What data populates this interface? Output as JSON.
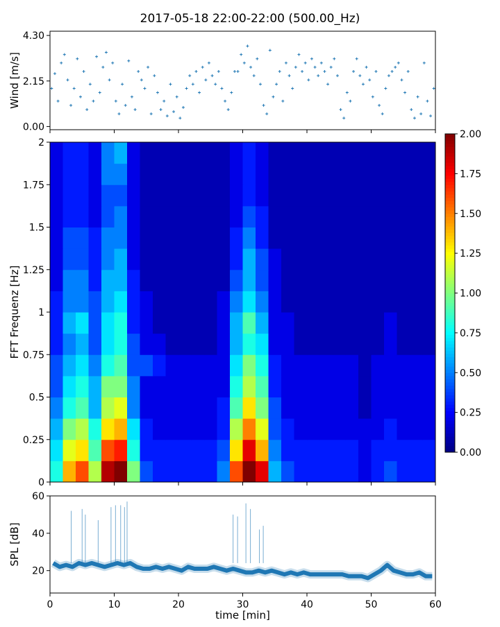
{
  "title": "2017-05-18 22:00-22:00 (500.00_Hz)",
  "chart_data": [
    {
      "type": "scatter",
      "ylabel": "Wind [m/s]",
      "ylim": [
        -0.15,
        4.5
      ],
      "xlim": [
        0,
        60
      ],
      "yticks": [
        "0.00",
        "2.15",
        "4.30"
      ],
      "ytick_values": [
        0,
        2.15,
        4.3
      ],
      "marker": "+",
      "color": "#1f77b4",
      "x_step_min": 0.5,
      "values": [
        1.8,
        2.5,
        1.2,
        3.0,
        3.4,
        2.2,
        1.0,
        1.8,
        3.2,
        1.4,
        2.6,
        0.8,
        2.0,
        1.2,
        3.3,
        1.6,
        2.8,
        3.5,
        2.2,
        3.0,
        1.2,
        0.6,
        2.0,
        1.0,
        3.1,
        1.4,
        0.8,
        2.6,
        2.2,
        1.8,
        2.8,
        0.6,
        2.4,
        1.6,
        0.8,
        1.2,
        0.5,
        2.0,
        0.7,
        1.4,
        0.4,
        0.9,
        1.8,
        2.4,
        2.0,
        2.6,
        1.6,
        2.8,
        2.2,
        3.0,
        2.4,
        2.0,
        2.6,
        1.8,
        1.2,
        0.8,
        1.6,
        2.6,
        2.6,
        3.4,
        3.0,
        3.8,
        2.8,
        2.4,
        3.2,
        2.0,
        1.0,
        0.6,
        3.6,
        1.4,
        2.0,
        2.6,
        1.2,
        3.0,
        2.4,
        1.8,
        2.8,
        3.4,
        2.6,
        3.0,
        2.2,
        3.2,
        2.8,
        2.4,
        3.0,
        2.6,
        2.0,
        2.8,
        3.2,
        2.4,
        0.8,
        0.4,
        1.6,
        1.2,
        2.6,
        3.2,
        2.4,
        2.0,
        2.8,
        2.2,
        1.4,
        2.6,
        1.0,
        0.6,
        1.8,
        2.4,
        2.6,
        2.8,
        3.0,
        2.2,
        1.6,
        2.6,
        0.8,
        0.4,
        1.4,
        0.6,
        3.0,
        1.2,
        0.5,
        1.8
      ]
    },
    {
      "type": "heatmap",
      "ylabel": "FFT Frequenz [Hz]",
      "xlim": [
        0,
        60
      ],
      "ylim": [
        0,
        2
      ],
      "yticks": [
        "0",
        "0.25",
        "0.5",
        "0.75",
        "1",
        "1.25",
        "1.5",
        "1.75",
        "2"
      ],
      "ytick_values": [
        0,
        0.25,
        0.5,
        0.75,
        1,
        1.25,
        1.5,
        1.75,
        2
      ],
      "time_bin_min": 2,
      "freq_bin_hz": 0.125,
      "colormap": "jet",
      "colorbar": {
        "range": [
          0,
          2
        ],
        "ticks": [
          "0.00",
          "0.25",
          "0.50",
          "0.75",
          "1.00",
          "1.25",
          "1.50",
          "1.75",
          "2.00"
        ],
        "tick_values": [
          0,
          0.25,
          0.5,
          0.75,
          1,
          1.25,
          1.5,
          1.75,
          2
        ]
      },
      "values": [
        [
          0.8,
          1.4,
          1.6,
          1.1,
          1.9,
          2.0,
          1.0,
          0.4,
          0.3,
          0.3,
          0.3,
          0.3,
          0.3,
          0.5,
          1.6,
          2.0,
          1.8,
          0.6,
          0.4,
          0.3,
          0.3,
          0.3,
          0.3,
          0.3,
          0.2,
          0.3,
          0.4,
          0.3,
          0.3,
          0.3
        ],
        [
          0.7,
          1.2,
          1.3,
          0.9,
          1.6,
          1.7,
          0.8,
          0.3,
          0.3,
          0.3,
          0.3,
          0.3,
          0.3,
          0.4,
          1.3,
          1.8,
          1.4,
          0.5,
          0.3,
          0.3,
          0.3,
          0.3,
          0.3,
          0.3,
          0.2,
          0.3,
          0.3,
          0.3,
          0.3,
          0.3
        ],
        [
          0.6,
          1.0,
          1.1,
          0.8,
          1.3,
          1.4,
          0.7,
          0.3,
          0.2,
          0.2,
          0.2,
          0.2,
          0.2,
          0.3,
          1.1,
          1.5,
          1.2,
          0.4,
          0.3,
          0.2,
          0.2,
          0.2,
          0.2,
          0.2,
          0.2,
          0.2,
          0.3,
          0.2,
          0.2,
          0.2
        ],
        [
          0.5,
          0.8,
          0.9,
          0.6,
          1.1,
          1.2,
          0.5,
          0.2,
          0.2,
          0.2,
          0.2,
          0.2,
          0.2,
          0.3,
          0.9,
          1.3,
          1.0,
          0.4,
          0.2,
          0.2,
          0.2,
          0.2,
          0.2,
          0.2,
          0.1,
          0.2,
          0.2,
          0.2,
          0.2,
          0.2
        ],
        [
          0.4,
          0.7,
          0.8,
          0.6,
          1.0,
          1.0,
          0.5,
          0.2,
          0.2,
          0.2,
          0.2,
          0.2,
          0.2,
          0.2,
          0.8,
          1.1,
          0.9,
          0.3,
          0.2,
          0.2,
          0.2,
          0.2,
          0.2,
          0.2,
          0.1,
          0.2,
          0.2,
          0.2,
          0.2,
          0.2
        ],
        [
          0.4,
          0.6,
          0.7,
          0.5,
          0.8,
          0.9,
          0.4,
          0.4,
          0.3,
          0.2,
          0.2,
          0.2,
          0.2,
          0.2,
          0.7,
          1.0,
          0.8,
          0.3,
          0.2,
          0.2,
          0.2,
          0.2,
          0.2,
          0.2,
          0.1,
          0.2,
          0.2,
          0.2,
          0.2,
          0.2
        ],
        [
          0.3,
          0.5,
          0.6,
          0.4,
          0.7,
          0.8,
          0.4,
          0.2,
          0.2,
          0.1,
          0.1,
          0.1,
          0.1,
          0.2,
          0.6,
          0.8,
          0.7,
          0.2,
          0.2,
          0.1,
          0.1,
          0.1,
          0.1,
          0.1,
          0.1,
          0.1,
          0.2,
          0.1,
          0.1,
          0.1
        ],
        [
          0.3,
          0.6,
          0.7,
          0.4,
          0.7,
          0.8,
          0.3,
          0.2,
          0.1,
          0.1,
          0.1,
          0.1,
          0.1,
          0.2,
          0.6,
          0.9,
          0.6,
          0.2,
          0.2,
          0.1,
          0.1,
          0.1,
          0.1,
          0.1,
          0.1,
          0.1,
          0.2,
          0.1,
          0.1,
          0.1
        ],
        [
          0.3,
          0.5,
          0.5,
          0.4,
          0.6,
          0.7,
          0.3,
          0.2,
          0.1,
          0.1,
          0.1,
          0.1,
          0.1,
          0.2,
          0.5,
          0.7,
          0.5,
          0.2,
          0.1,
          0.1,
          0.1,
          0.1,
          0.1,
          0.1,
          0.1,
          0.1,
          0.1,
          0.1,
          0.1,
          0.1
        ],
        [
          0.2,
          0.5,
          0.5,
          0.3,
          0.6,
          0.6,
          0.3,
          0.1,
          0.1,
          0.1,
          0.1,
          0.1,
          0.1,
          0.1,
          0.4,
          0.6,
          0.4,
          0.2,
          0.1,
          0.1,
          0.1,
          0.1,
          0.1,
          0.1,
          0.1,
          0.1,
          0.1,
          0.1,
          0.1,
          0.1
        ],
        [
          0.2,
          0.4,
          0.4,
          0.3,
          0.5,
          0.6,
          0.2,
          0.1,
          0.1,
          0.1,
          0.1,
          0.1,
          0.1,
          0.1,
          0.3,
          0.6,
          0.4,
          0.2,
          0.1,
          0.1,
          0.1,
          0.1,
          0.1,
          0.1,
          0.1,
          0.1,
          0.1,
          0.1,
          0.1,
          0.1
        ],
        [
          0.2,
          0.4,
          0.4,
          0.3,
          0.5,
          0.5,
          0.2,
          0.1,
          0.1,
          0.1,
          0.1,
          0.1,
          0.1,
          0.1,
          0.3,
          0.5,
          0.3,
          0.1,
          0.1,
          0.1,
          0.1,
          0.1,
          0.1,
          0.1,
          0.1,
          0.1,
          0.1,
          0.1,
          0.1,
          0.1
        ],
        [
          0.2,
          0.3,
          0.3,
          0.2,
          0.4,
          0.5,
          0.2,
          0.1,
          0.1,
          0.1,
          0.1,
          0.1,
          0.1,
          0.1,
          0.2,
          0.4,
          0.3,
          0.1,
          0.1,
          0.1,
          0.1,
          0.1,
          0.1,
          0.1,
          0.1,
          0.1,
          0.1,
          0.1,
          0.1,
          0.1
        ],
        [
          0.2,
          0.3,
          0.3,
          0.2,
          0.4,
          0.4,
          0.2,
          0.1,
          0.1,
          0.1,
          0.1,
          0.1,
          0.1,
          0.1,
          0.2,
          0.3,
          0.2,
          0.1,
          0.1,
          0.1,
          0.1,
          0.1,
          0.1,
          0.1,
          0.1,
          0.1,
          0.1,
          0.1,
          0.1,
          0.1
        ],
        [
          0.2,
          0.3,
          0.3,
          0.2,
          0.5,
          0.5,
          0.2,
          0.1,
          0.1,
          0.1,
          0.1,
          0.1,
          0.1,
          0.1,
          0.2,
          0.3,
          0.2,
          0.1,
          0.1,
          0.1,
          0.1,
          0.1,
          0.1,
          0.1,
          0.1,
          0.1,
          0.1,
          0.1,
          0.1,
          0.1
        ],
        [
          0.2,
          0.3,
          0.3,
          0.2,
          0.5,
          0.6,
          0.2,
          0.1,
          0.1,
          0.1,
          0.1,
          0.1,
          0.1,
          0.1,
          0.2,
          0.3,
          0.2,
          0.1,
          0.1,
          0.1,
          0.1,
          0.1,
          0.1,
          0.1,
          0.1,
          0.1,
          0.1,
          0.1,
          0.1,
          0.1
        ]
      ]
    },
    {
      "type": "line",
      "xlabel": "time [min]",
      "ylabel": "SPL [dB]",
      "xlim": [
        0,
        60
      ],
      "ylim": [
        8,
        60
      ],
      "xticks": [
        "0",
        "10",
        "20",
        "30",
        "40",
        "50",
        "60"
      ],
      "xtick_values": [
        0,
        10,
        20,
        30,
        40,
        50,
        60
      ],
      "yticks": [
        "20",
        "40",
        "60"
      ],
      "ytick_values": [
        20,
        40,
        60
      ],
      "color": "#1f77b4",
      "x": [
        0.5,
        1.5,
        2.5,
        3.5,
        4.5,
        5.5,
        6.5,
        7.5,
        8.5,
        9.5,
        10.5,
        11.5,
        12.5,
        13.5,
        14.5,
        15.5,
        16.5,
        17.5,
        18.5,
        19.5,
        20.5,
        21.5,
        22.5,
        23.5,
        24.5,
        25.5,
        26.5,
        27.5,
        28.5,
        29.5,
        30.5,
        31.5,
        32.5,
        33.5,
        34.5,
        35.5,
        36.5,
        37.5,
        38.5,
        39.5,
        40.5,
        41.5,
        42.5,
        43.5,
        44.5,
        45.5,
        46.5,
        47.5,
        48.5,
        49.5,
        50.5,
        51.5,
        52.5,
        53.5,
        54.5,
        55.5,
        56.5,
        57.5,
        58.5,
        59.5
      ],
      "values": [
        24,
        22,
        23,
        22,
        24,
        23,
        24,
        23,
        22,
        23,
        24,
        23,
        24,
        22,
        21,
        21,
        22,
        21,
        22,
        21,
        20,
        22,
        21,
        21,
        21,
        22,
        21,
        20,
        21,
        20,
        19,
        19,
        20,
        19,
        20,
        19,
        18,
        19,
        18,
        19,
        18,
        18,
        18,
        18,
        18,
        18,
        17,
        17,
        17,
        16,
        18,
        20,
        23,
        20,
        19,
        18,
        18,
        19,
        17,
        17
      ],
      "spikes": [
        [
          3.3,
          52
        ],
        [
          5.0,
          53
        ],
        [
          5.5,
          50
        ],
        [
          7.5,
          47
        ],
        [
          9.5,
          54
        ],
        [
          10.2,
          55
        ],
        [
          11.0,
          55
        ],
        [
          11.6,
          54
        ],
        [
          12.0,
          57
        ],
        [
          28.5,
          50
        ],
        [
          29.2,
          49
        ],
        [
          30.5,
          56
        ],
        [
          31.2,
          53
        ],
        [
          32.6,
          42
        ],
        [
          33.2,
          44
        ]
      ]
    }
  ]
}
